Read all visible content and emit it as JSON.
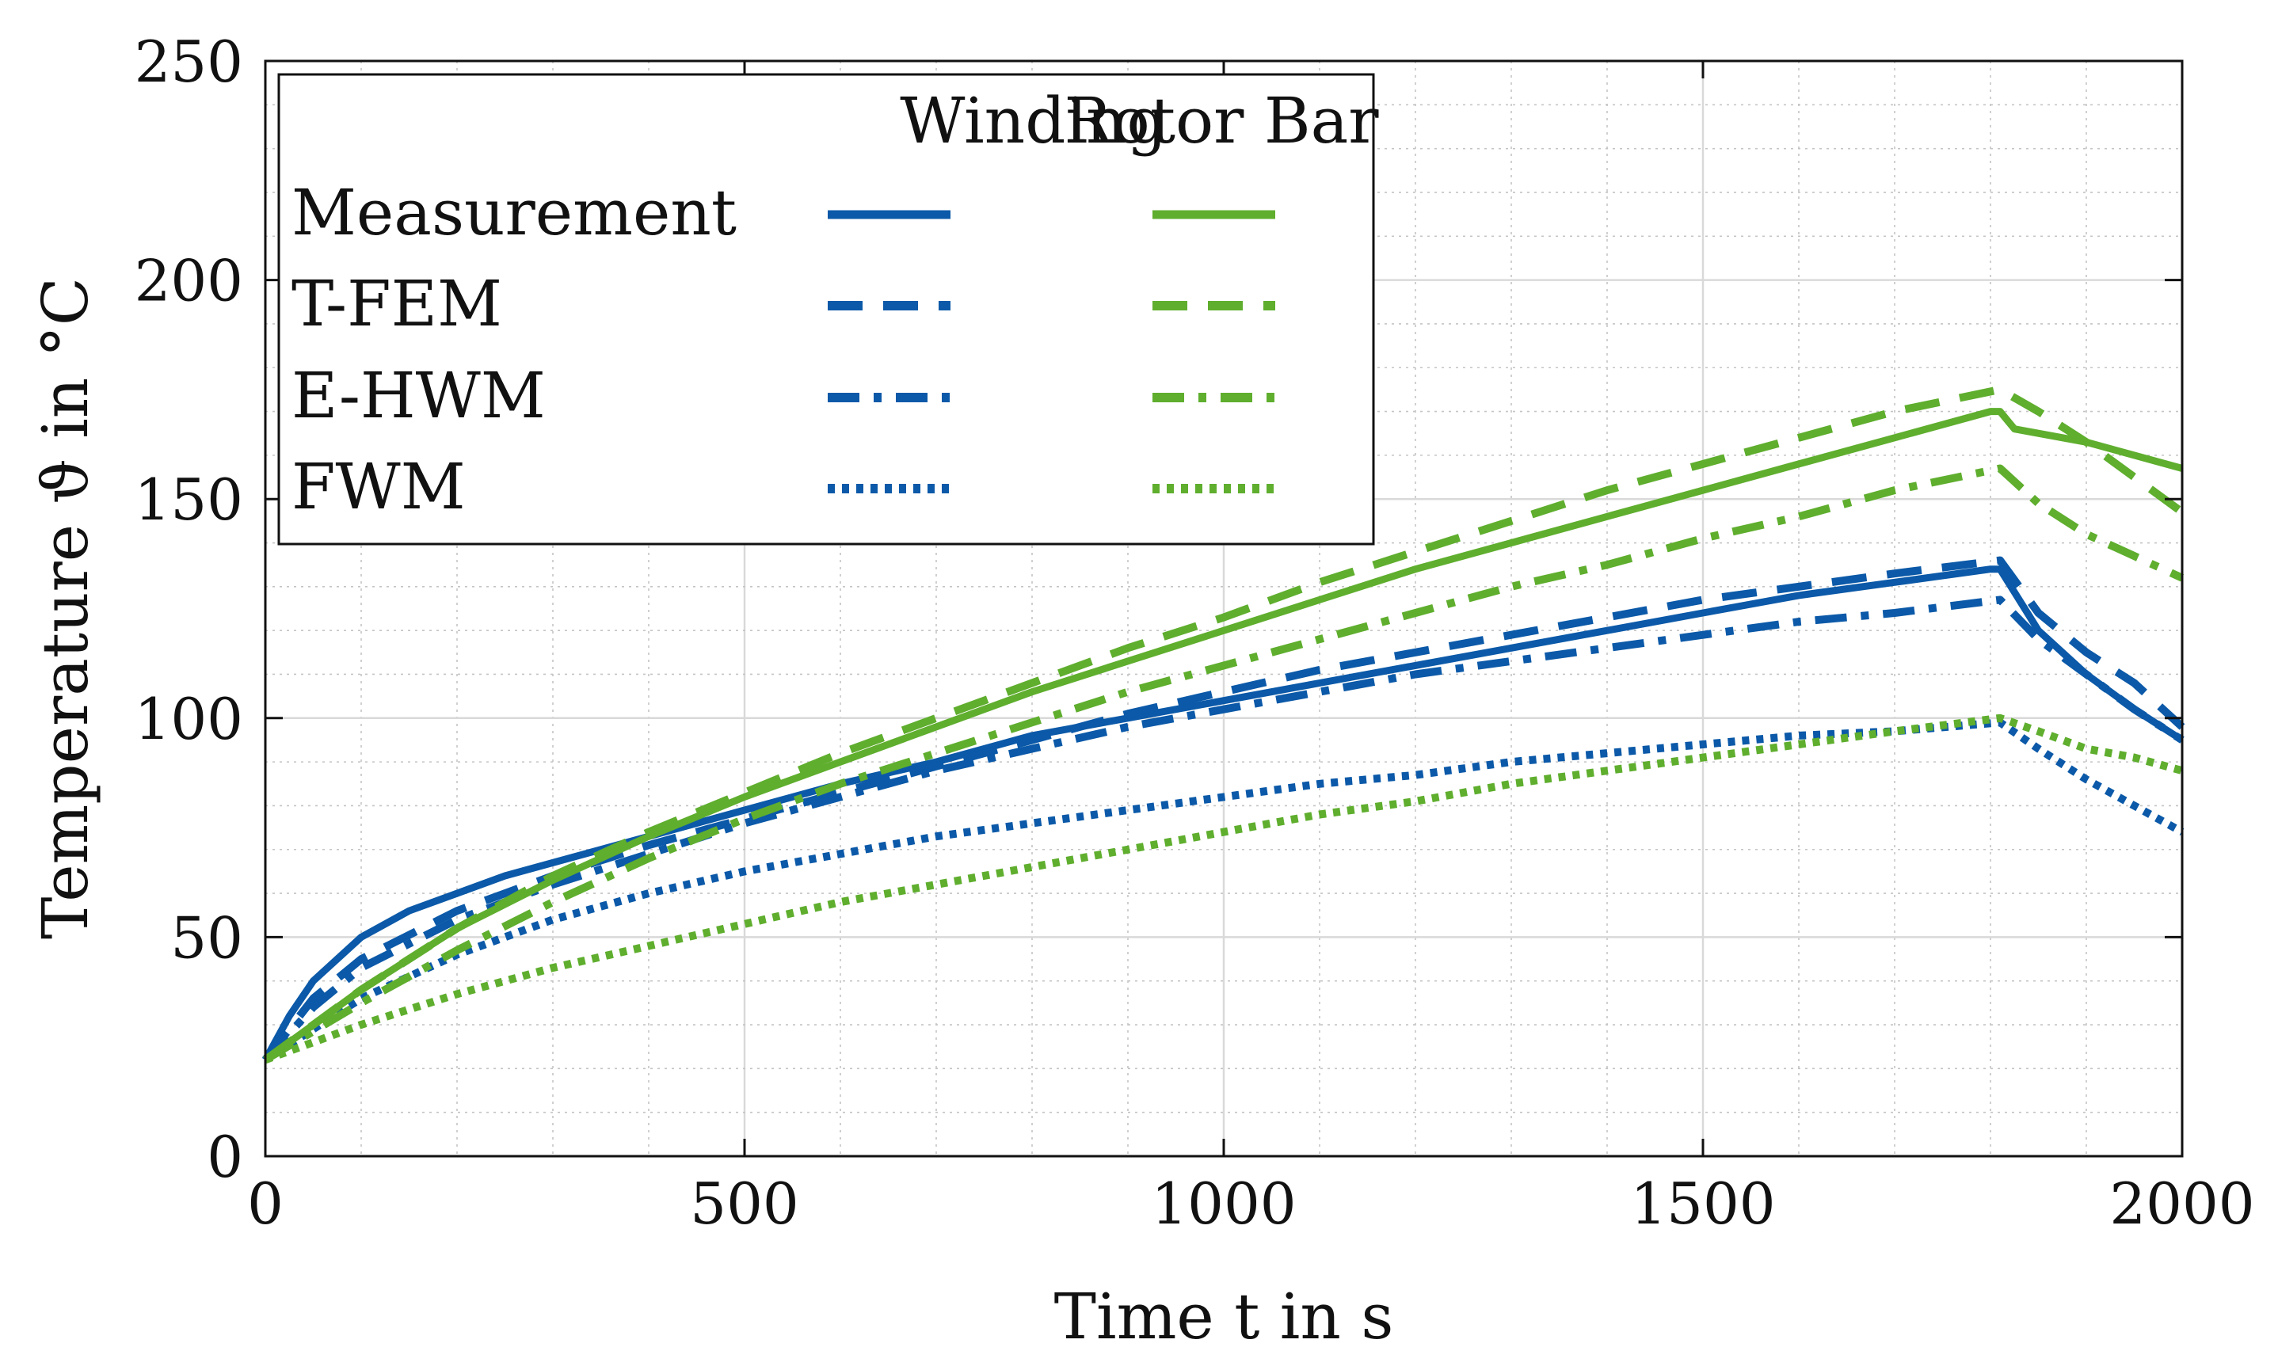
{
  "colors": {
    "winding": "#0b59a8",
    "rotor_bar": "#5fae2e",
    "grid": "#d9d9d9",
    "axis": "#111111"
  },
  "chart_data": {
    "type": "line",
    "xlabel": "Time t  in s",
    "ylabel": "Temperature ϑ in °C",
    "xlim": [
      0,
      2000
    ],
    "ylim": [
      0,
      250
    ],
    "xticks": [
      0,
      500,
      1000,
      1500,
      2000
    ],
    "yticks": [
      0,
      50,
      100,
      150,
      200,
      250
    ],
    "xtick_labels": [
      "0",
      "500",
      "1000",
      "1500",
      "2000"
    ],
    "ytick_labels": [
      "0",
      "50",
      "100",
      "150",
      "200",
      "250"
    ],
    "grid": true,
    "minor_grid": true,
    "legend": {
      "placement": "top-left",
      "col_headers": [
        "Winding",
        "Rotor Bar"
      ],
      "rows": [
        "Measurement",
        "T-FEM",
        "E-HWM",
        "FWM"
      ],
      "styles": [
        "solid",
        "dashed",
        "dashdot",
        "dotted"
      ]
    },
    "series": [
      {
        "name": "Winding Measurement",
        "group": "winding",
        "style": "solid",
        "x": [
          0,
          25,
          50,
          100,
          150,
          200,
          250,
          300,
          400,
          500,
          600,
          700,
          800,
          900,
          1000,
          1100,
          1200,
          1300,
          1400,
          1500,
          1600,
          1700,
          1800,
          1810,
          1850,
          1900,
          1950,
          2000
        ],
        "y": [
          22,
          32,
          40,
          50,
          56,
          60,
          64,
          67,
          73,
          79,
          85,
          90,
          96,
          100,
          104,
          108,
          112,
          116,
          120,
          124,
          128,
          131,
          134,
          134,
          120,
          110,
          102,
          95
        ]
      },
      {
        "name": "Winding T-FEM",
        "group": "winding",
        "style": "dashed",
        "x": [
          0,
          50,
          100,
          200,
          300,
          400,
          500,
          600,
          700,
          800,
          900,
          1000,
          1100,
          1200,
          1300,
          1400,
          1500,
          1600,
          1700,
          1810,
          1850,
          1900,
          1950,
          2000
        ],
        "y": [
          22,
          36,
          45,
          56,
          64,
          71,
          77,
          83,
          89,
          95,
          101,
          106,
          111,
          115,
          119,
          123,
          127,
          130,
          133,
          136,
          124,
          115,
          108,
          98
        ]
      },
      {
        "name": "Winding E-HWM",
        "group": "winding",
        "style": "dashdot",
        "x": [
          0,
          50,
          100,
          200,
          300,
          400,
          500,
          600,
          700,
          800,
          900,
          1000,
          1100,
          1200,
          1300,
          1400,
          1500,
          1600,
          1700,
          1810,
          1850,
          1900,
          1950,
          2000
        ],
        "y": [
          22,
          34,
          43,
          54,
          62,
          69,
          76,
          82,
          88,
          93,
          98,
          102,
          106,
          110,
          113,
          116,
          119,
          122,
          124,
          127,
          118,
          110,
          102,
          95
        ]
      },
      {
        "name": "Winding FWM",
        "group": "winding",
        "style": "dotted",
        "x": [
          0,
          100,
          200,
          300,
          400,
          500,
          600,
          700,
          800,
          900,
          1000,
          1100,
          1200,
          1300,
          1400,
          1500,
          1600,
          1700,
          1810,
          1850,
          1900,
          1950,
          2000
        ],
        "y": [
          22,
          36,
          46,
          54,
          60,
          65,
          69,
          73,
          76,
          79,
          82,
          85,
          87,
          90,
          92,
          94,
          96,
          97,
          99,
          93,
          86,
          80,
          74
        ]
      },
      {
        "name": "Rotor Bar Measurement",
        "group": "rotor_bar",
        "style": "solid",
        "x": [
          0,
          100,
          200,
          300,
          400,
          500,
          600,
          700,
          800,
          900,
          1000,
          1100,
          1200,
          1300,
          1400,
          1500,
          1600,
          1700,
          1800,
          1810,
          1825,
          1900,
          2000
        ],
        "y": [
          22,
          38,
          52,
          63,
          73,
          82,
          90,
          98,
          106,
          113,
          120,
          127,
          134,
          140,
          146,
          152,
          158,
          164,
          170,
          170,
          166,
          163,
          157
        ]
      },
      {
        "name": "Rotor Bar T-FEM",
        "group": "rotor_bar",
        "style": "dashed",
        "x": [
          0,
          100,
          200,
          300,
          400,
          500,
          600,
          700,
          800,
          900,
          1000,
          1100,
          1200,
          1300,
          1400,
          1500,
          1600,
          1700,
          1810,
          1850,
          1900,
          1950,
          2000
        ],
        "y": [
          22,
          38,
          52,
          64,
          74,
          83,
          92,
          100,
          108,
          116,
          123,
          131,
          138,
          145,
          152,
          158,
          164,
          170,
          175,
          170,
          163,
          155,
          147
        ]
      },
      {
        "name": "Rotor Bar E-HWM",
        "group": "rotor_bar",
        "style": "dashdot",
        "x": [
          0,
          100,
          200,
          300,
          400,
          500,
          600,
          700,
          800,
          900,
          1000,
          1100,
          1200,
          1300,
          1400,
          1500,
          1600,
          1700,
          1810,
          1850,
          1900,
          1950,
          2000
        ],
        "y": [
          22,
          35,
          47,
          58,
          68,
          77,
          85,
          92,
          99,
          106,
          112,
          118,
          124,
          130,
          135,
          141,
          146,
          152,
          157,
          149,
          142,
          137,
          132
        ]
      },
      {
        "name": "Rotor Bar FWM",
        "group": "rotor_bar",
        "style": "dotted",
        "x": [
          0,
          100,
          200,
          300,
          400,
          500,
          600,
          700,
          800,
          900,
          1000,
          1100,
          1200,
          1300,
          1400,
          1500,
          1600,
          1700,
          1810,
          1850,
          1900,
          1950,
          2000
        ],
        "y": [
          22,
          30,
          37,
          43,
          48,
          53,
          58,
          62,
          66,
          70,
          74,
          78,
          81,
          85,
          88,
          91,
          94,
          97,
          100,
          97,
          93,
          91,
          88
        ]
      }
    ]
  }
}
